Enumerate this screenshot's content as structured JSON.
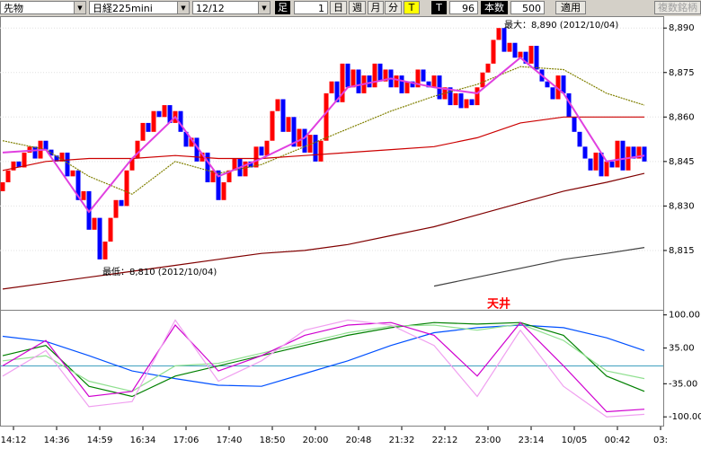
{
  "toolbar": {
    "market": "先物",
    "symbol": "日経225mini",
    "contract": "12/12",
    "bar_label": "足",
    "bar_count": "1",
    "buttons": [
      "日",
      "週",
      "月",
      "分",
      "T"
    ],
    "mode": "T",
    "count": "96",
    "count_label": "本数",
    "bars": "500",
    "apply": "適用",
    "multi": "複数銘柄"
  },
  "chart_data": [
    {
      "type": "candlestick",
      "first_open": 8835,
      "values": [
        8838,
        8842,
        8845,
        8843,
        8848,
        8850,
        8846,
        8852,
        8849,
        8847,
        8845,
        8848,
        8840,
        8842,
        8832,
        8835,
        8822,
        8826,
        8812,
        8818,
        8826,
        8832,
        8830,
        8842,
        8846,
        8852,
        8858,
        8855,
        8862,
        8860,
        8864,
        8858,
        8862,
        8855,
        8850,
        8853,
        8845,
        8848,
        8838,
        8842,
        8832,
        8838,
        8842,
        8846,
        8840,
        8845,
        8843,
        8850,
        8847,
        8852,
        8862,
        8866,
        8855,
        8860,
        8850,
        8856,
        8848,
        8854,
        8845,
        8852,
        8868,
        8872,
        8865,
        8878,
        8870,
        8876,
        8868,
        8874,
        8870,
        8878,
        8872,
        8876,
        8870,
        8874,
        8868,
        8872,
        8870,
        8876,
        8872,
        8870,
        8874,
        8866,
        8870,
        8864,
        8868,
        8863,
        8866,
        8864,
        8870,
        8875,
        8878,
        8886,
        8890,
        8882,
        8885,
        8880,
        8882,
        8878,
        8884,
        8876,
        8872,
        8870,
        8866,
        8874,
        8868,
        8860,
        8855,
        8850,
        8846,
        8842,
        8848,
        8840,
        8845,
        8843,
        8852,
        8842,
        8850,
        8846,
        8850,
        8845
      ],
      "up_color": "#ff0000",
      "down_color": "#0000ff",
      "line_x": [
        0,
        8,
        16,
        24,
        32,
        40,
        48,
        56,
        64,
        72,
        80,
        88,
        96,
        104,
        112,
        119
      ],
      "lines": [
        {
          "color": "#808000",
          "dash": true,
          "values": [
            8852,
            8849,
            8840,
            8834,
            8845,
            8841,
            8844,
            8850,
            8856,
            8862,
            8867,
            8871,
            8877,
            8876,
            8868,
            8864
          ]
        },
        {
          "color": "#cc0000",
          "values": [
            8842,
            8845,
            8846,
            8846,
            8847,
            8846,
            8846,
            8847,
            8848,
            8849,
            8850,
            8853,
            8858,
            8860,
            8860,
            8860
          ]
        },
        {
          "color": "#800000",
          "values": [
            8802,
            8804,
            8806,
            8808,
            8810,
            8812,
            8814,
            8815,
            8817,
            8820,
            8823,
            8827,
            8831,
            8835,
            8838,
            8841
          ]
        },
        {
          "color": "#404040",
          "values": [
            null,
            null,
            null,
            null,
            null,
            null,
            null,
            null,
            null,
            null,
            8803,
            8806,
            8809,
            8812,
            8814,
            8816
          ]
        },
        {
          "color": "#e040e0",
          "values": [
            8848,
            8849,
            8828,
            8846,
            8860,
            8840,
            8846,
            8853,
            8870,
            8873,
            8870,
            8868,
            8880,
            8868,
            8845,
            8847
          ]
        }
      ],
      "xlim": [
        -0.5,
        122.5
      ],
      "ylim": [
        8795,
        8894
      ],
      "yticks": [
        {
          "value": 8815,
          "label": "8,815"
        },
        {
          "value": 8830,
          "label": "8,830"
        },
        {
          "value": 8845,
          "label": "8,845"
        },
        {
          "value": 8860,
          "label": "8,860"
        },
        {
          "value": 8875,
          "label": "8,875"
        },
        {
          "value": 8890,
          "label": "8,890"
        }
      ],
      "grid": true,
      "annotations": [
        "最大：8,890 (2012/10/04)",
        "最低：8,810 (2012/10/04)"
      ]
    },
    {
      "type": "line",
      "annotation": "天井",
      "x": [
        0,
        8,
        16,
        24,
        32,
        40,
        48,
        56,
        64,
        72,
        80,
        88,
        96,
        104,
        112,
        119
      ],
      "lines": [
        {
          "color": "#0050ff",
          "values": [
            58,
            48,
            20,
            -10,
            -25,
            -38,
            -40,
            -15,
            10,
            40,
            65,
            75,
            80,
            75,
            55,
            30
          ]
        },
        {
          "color": "#008000",
          "values": [
            20,
            40,
            -40,
            -60,
            -20,
            0,
            20,
            40,
            60,
            75,
            85,
            82,
            85,
            60,
            -20,
            -50
          ]
        },
        {
          "color": "#90e090",
          "values": [
            10,
            20,
            -30,
            -50,
            0,
            5,
            25,
            45,
            65,
            78,
            80,
            70,
            82,
            50,
            -10,
            -25
          ]
        },
        {
          "color": "#d000d0",
          "values": [
            0,
            50,
            -60,
            -50,
            80,
            -10,
            20,
            60,
            80,
            85,
            60,
            -20,
            85,
            0,
            -90,
            -85
          ]
        },
        {
          "color": "#f0a0f0",
          "values": [
            -20,
            30,
            -80,
            -70,
            90,
            -30,
            10,
            70,
            90,
            80,
            40,
            -60,
            70,
            -40,
            -100,
            -95
          ]
        }
      ],
      "ref_line": 0,
      "ref_color": "#40a0c0",
      "xlim": [
        -0.5,
        122.5
      ],
      "ylim": [
        -119,
        110
      ],
      "yticks": [
        {
          "value": -100,
          "label": "-100.00"
        },
        {
          "value": -35,
          "label": "-35.00"
        },
        {
          "value": 35,
          "label": "35.00"
        },
        {
          "value": 100,
          "label": "100.00"
        }
      ],
      "xticks": [
        {
          "value": 2,
          "label": "14:12"
        },
        {
          "value": 10,
          "label": "14:36"
        },
        {
          "value": 18,
          "label": "14:59"
        },
        {
          "value": 26,
          "label": "16:34"
        },
        {
          "value": 34,
          "label": "17:06"
        },
        {
          "value": 42,
          "label": "17:40"
        },
        {
          "value": 50,
          "label": "18:50"
        },
        {
          "value": 58,
          "label": "20:00"
        },
        {
          "value": 66,
          "label": "20:48"
        },
        {
          "value": 74,
          "label": "21:32"
        },
        {
          "value": 82,
          "label": "22:12"
        },
        {
          "value": 90,
          "label": "23:00"
        },
        {
          "value": 98,
          "label": "23:14"
        },
        {
          "value": 106,
          "label": "10/05"
        },
        {
          "value": 114,
          "label": "00:42"
        },
        {
          "value": 122,
          "label": "03:"
        }
      ]
    }
  ]
}
